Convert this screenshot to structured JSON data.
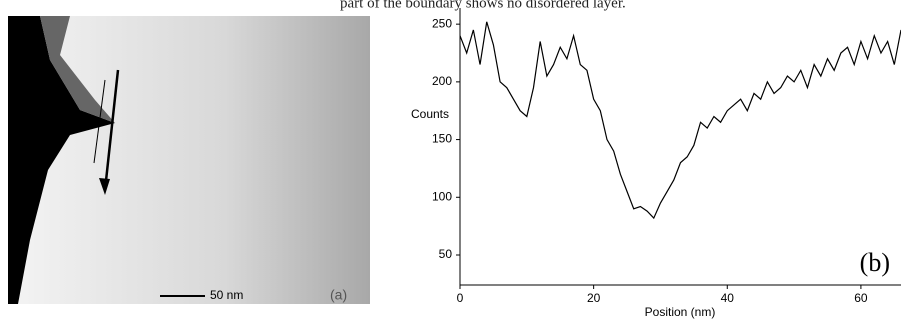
{
  "caption_fragment": "part of the boundary shows no disordered layer.",
  "image": {
    "scale_label": "50 nm",
    "panel_label": "(a)"
  },
  "chart_data": {
    "type": "line",
    "panel_label": "(b)",
    "x_label": "Position (nm)",
    "y_label": "Counts",
    "x": [
      0,
      1,
      2,
      3,
      4,
      5,
      6,
      7,
      8,
      9,
      10,
      11,
      12,
      13,
      14,
      15,
      16,
      17,
      18,
      19,
      20,
      21,
      22,
      23,
      24,
      25,
      26,
      27,
      28,
      29,
      30,
      31,
      32,
      33,
      34,
      35,
      36,
      37,
      38,
      39,
      40,
      41,
      42,
      43,
      44,
      45,
      46,
      47,
      48,
      49,
      50,
      51,
      52,
      53,
      54,
      55,
      56,
      57,
      58,
      59,
      60,
      61,
      62,
      63,
      64,
      65,
      66
    ],
    "series": [
      {
        "name": "Counts",
        "color": "#000000",
        "values": [
          240,
          225,
          245,
          215,
          252,
          232,
          200,
          195,
          185,
          175,
          170,
          195,
          235,
          205,
          215,
          230,
          220,
          240,
          215,
          210,
          185,
          175,
          150,
          140,
          120,
          105,
          90,
          92,
          88,
          82,
          95,
          105,
          115,
          130,
          135,
          145,
          165,
          160,
          170,
          165,
          175,
          180,
          185,
          175,
          190,
          185,
          200,
          190,
          195,
          205,
          200,
          210,
          195,
          215,
          205,
          220,
          210,
          225,
          230,
          215,
          235,
          220,
          240,
          225,
          235,
          215,
          245
        ]
      }
    ],
    "xlim": [
      0,
      66
    ],
    "ylim": [
      24,
      264
    ],
    "xticks": [
      0,
      20,
      40,
      60
    ],
    "yticks": [
      50,
      100,
      150,
      200,
      250
    ]
  }
}
